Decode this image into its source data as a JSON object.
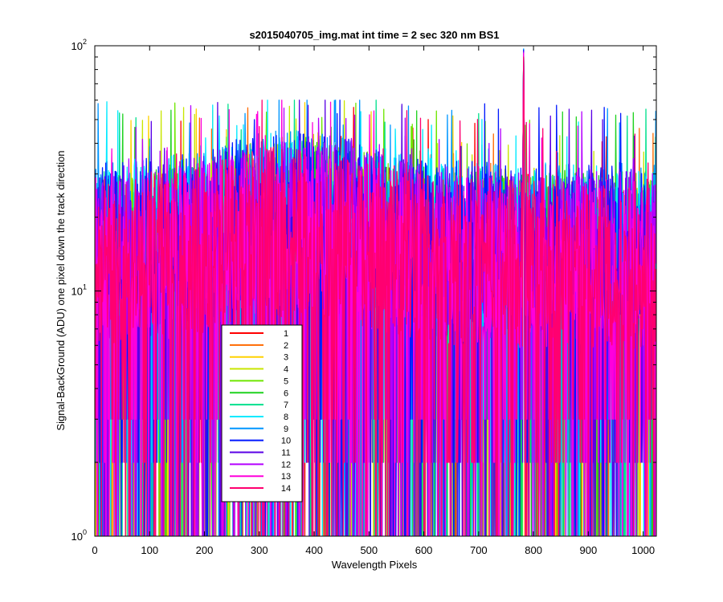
{
  "chart_data": {
    "type": "line",
    "title": "s2015040705_img.mat int time = 2 sec  320 nm BS1",
    "xlabel": "Wavelength Pixels",
    "ylabel": "Signal-BackGround (ADU) one pixel down the track direction",
    "xlim": [
      0,
      1024
    ],
    "ylim": [
      1,
      100
    ],
    "yscale": "log",
    "grid": false,
    "legend_position": "lower-left",
    "x_ticks": [
      "0",
      "100",
      "200",
      "300",
      "400",
      "500",
      "600",
      "700",
      "800",
      "900",
      "1000"
    ],
    "y_ticks": [
      {
        "base": "10",
        "exp": "0"
      },
      {
        "base": "10",
        "exp": "1"
      },
      {
        "base": "10",
        "exp": "2"
      }
    ],
    "x_points": 1024,
    "peak": {
      "x": 782,
      "y": 97
    },
    "series": [
      {
        "name": "1",
        "color": "#ff0000",
        "typical": 12,
        "peak": 95
      },
      {
        "name": "2",
        "color": "#ff6a00",
        "typical": 12,
        "peak": 93
      },
      {
        "name": "3",
        "color": "#ffd200",
        "typical": 13,
        "peak": 92
      },
      {
        "name": "4",
        "color": "#c8e600",
        "typical": 13,
        "peak": 94
      },
      {
        "name": "5",
        "color": "#6ee600",
        "typical": 14,
        "peak": 95
      },
      {
        "name": "6",
        "color": "#1ed21e",
        "typical": 14,
        "peak": 96
      },
      {
        "name": "7",
        "color": "#00e08c",
        "typical": 14,
        "peak": 96
      },
      {
        "name": "8",
        "color": "#00eaff",
        "typical": 15,
        "peak": 97
      },
      {
        "name": "9",
        "color": "#0096ff",
        "typical": 15,
        "peak": 97
      },
      {
        "name": "10",
        "color": "#0018ff",
        "typical": 15,
        "peak": 96
      },
      {
        "name": "11",
        "color": "#5a00e6",
        "typical": 14,
        "peak": 95
      },
      {
        "name": "12",
        "color": "#b400ff",
        "typical": 14,
        "peak": 94
      },
      {
        "name": "13",
        "color": "#ff00dc",
        "typical": 13,
        "peak": 93
      },
      {
        "name": "14",
        "color": "#ff0070",
        "typical": 13,
        "peak": 90
      }
    ]
  }
}
